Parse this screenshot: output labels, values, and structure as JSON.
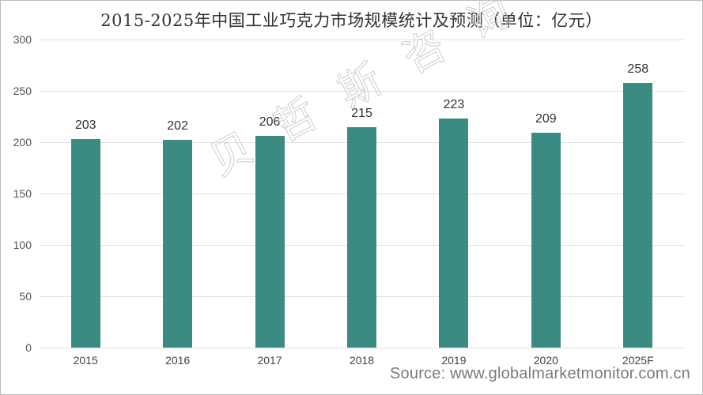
{
  "chart_data": {
    "type": "bar",
    "title": "2015-2025年中国工业巧克力市场规模统计及预测（单位：亿元）",
    "categories": [
      "2015",
      "2016",
      "2017",
      "2018",
      "2019",
      "2020",
      "2025F"
    ],
    "values": [
      203,
      202,
      206,
      215,
      223,
      209,
      258
    ],
    "value_labels": [
      "203",
      "202",
      "206",
      "215",
      "223",
      "209",
      "258"
    ],
    "xlabel": "",
    "ylabel": "",
    "ylim": [
      0,
      300
    ],
    "yticks": [
      "0",
      "50",
      "100",
      "150",
      "200",
      "250",
      "300"
    ],
    "grid": true,
    "legend": "none",
    "bar_color": "#3a8c83"
  },
  "source": "Source: www.globalmarketmonitor.com.cn",
  "watermark": "贝哲斯咨询"
}
